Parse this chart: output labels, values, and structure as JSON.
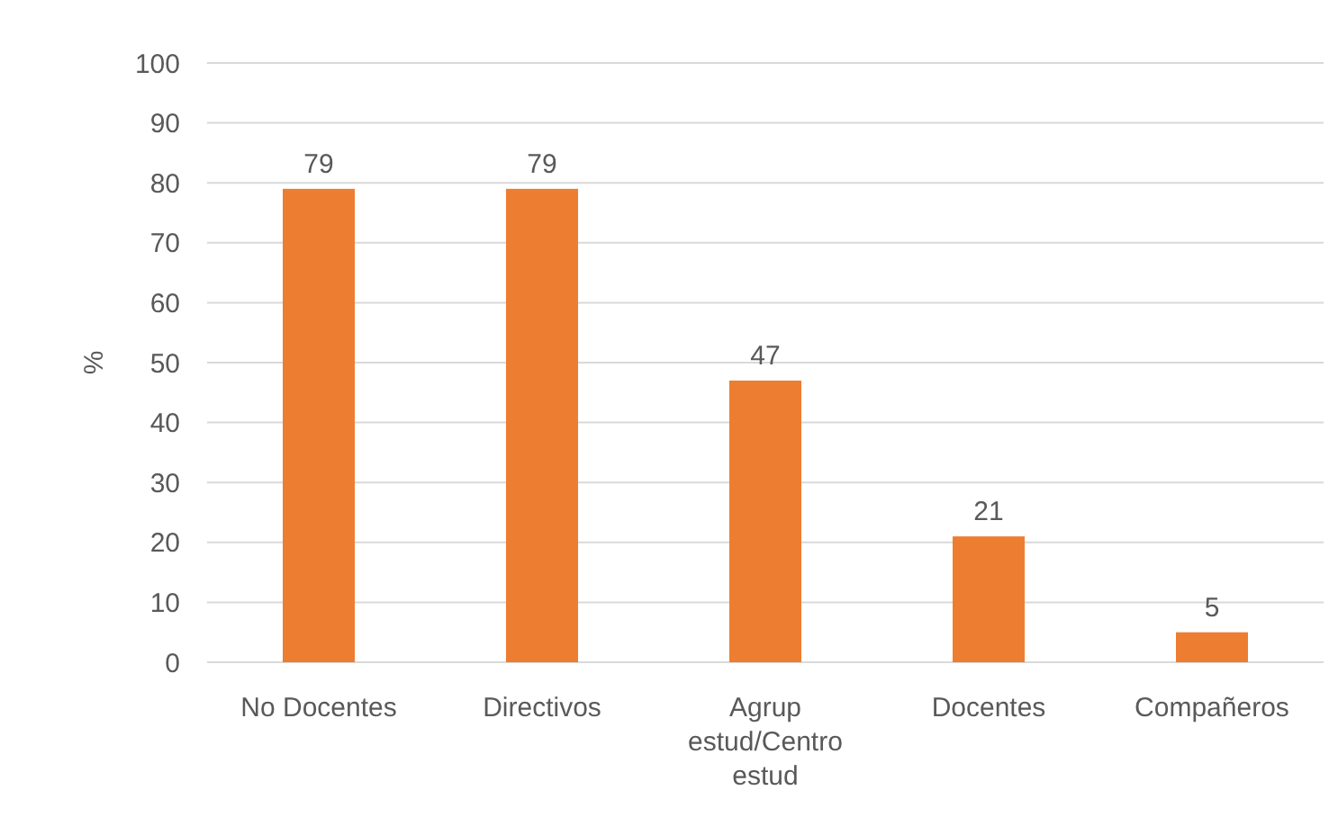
{
  "chart_data": {
    "type": "bar",
    "ylabel": "%",
    "categories": [
      "No Docentes",
      "Directivos",
      "Agrup estud/Centro estud",
      "Docentes",
      "Compañeros"
    ],
    "values": [
      79,
      79,
      47,
      21,
      5
    ],
    "color": "#ed7d31",
    "ylim": [
      0,
      100
    ],
    "yticks": [
      0,
      10,
      20,
      30,
      40,
      50,
      60,
      70,
      80,
      90,
      100
    ],
    "grid": "y",
    "data_labels": true
  }
}
